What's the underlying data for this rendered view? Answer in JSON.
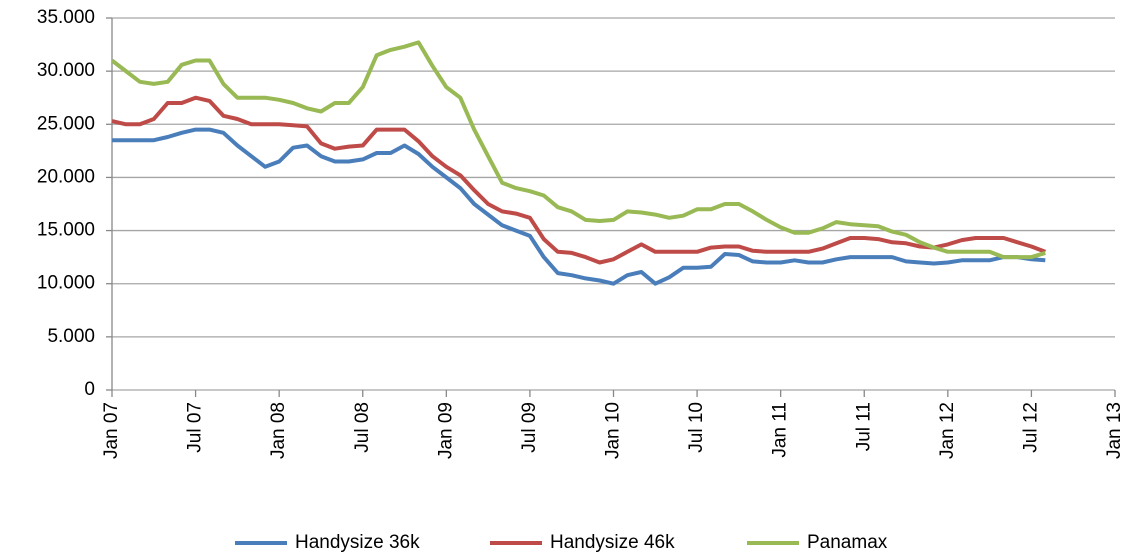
{
  "chart_data": {
    "type": "line",
    "categories": [
      "Jan 07",
      null,
      null,
      null,
      null,
      null,
      "Jul 07",
      null,
      null,
      null,
      null,
      null,
      "Jan 08",
      null,
      null,
      null,
      null,
      null,
      "Jul 08",
      null,
      null,
      null,
      null,
      null,
      "Jan 09",
      null,
      null,
      null,
      null,
      null,
      "Jul 09",
      null,
      null,
      null,
      null,
      null,
      "Jan 10",
      null,
      null,
      null,
      null,
      null,
      "Jul 10",
      null,
      null,
      null,
      null,
      null,
      "Jan 11",
      null,
      null,
      null,
      null,
      null,
      "Jul 11",
      null,
      null,
      null,
      null,
      null,
      "Jan 12",
      null,
      null,
      null,
      null,
      null,
      "Jul 12",
      null,
      null,
      null,
      null,
      null,
      "Jan 13"
    ],
    "series": [
      {
        "name": "Handysize 36k",
        "color": "#4a7ebb",
        "values": [
          23500,
          23500,
          23500,
          23500,
          23800,
          24200,
          24500,
          24500,
          24200,
          23000,
          22000,
          21000,
          21500,
          22800,
          23000,
          22000,
          21500,
          21500,
          21700,
          22300,
          22300,
          23000,
          22200,
          21000,
          20000,
          19000,
          17500,
          16500,
          15500,
          15000,
          14500,
          12500,
          11000,
          10800,
          10500,
          10300,
          10000,
          10800,
          11100,
          10000,
          10600,
          11500,
          11500,
          11600,
          12800,
          12700,
          12100,
          12000,
          12000,
          12200,
          12000,
          12000,
          12300,
          12500,
          12500,
          12500,
          12500,
          12100,
          12000,
          11900,
          12000,
          12200,
          12200,
          12200,
          12500,
          12500,
          12300,
          12200,
          null,
          null,
          null,
          null,
          null
        ]
      },
      {
        "name": "Handysize 46k",
        "color": "#be4b48",
        "values": [
          25300,
          25000,
          25000,
          25500,
          27000,
          27000,
          27500,
          27200,
          25800,
          25500,
          25000,
          25000,
          25000,
          24900,
          24800,
          23200,
          22700,
          22900,
          23000,
          24500,
          24500,
          24500,
          23400,
          22000,
          21000,
          20200,
          18800,
          17500,
          16800,
          16600,
          16200,
          14200,
          13000,
          12900,
          12500,
          12000,
          12300,
          13000,
          13700,
          13000,
          13000,
          13000,
          13000,
          13400,
          13500,
          13500,
          13100,
          13000,
          13000,
          13000,
          13000,
          13300,
          13800,
          14300,
          14300,
          14200,
          13900,
          13800,
          13500,
          13400,
          13700,
          14100,
          14300,
          14300,
          14300,
          13900,
          13500,
          13000,
          null,
          null,
          null,
          null,
          null
        ]
      },
      {
        "name": "Panamax",
        "color": "#98b954",
        "values": [
          31000,
          30000,
          29000,
          28800,
          29000,
          30600,
          31000,
          31000,
          28800,
          27500,
          27500,
          27500,
          27300,
          27000,
          26500,
          26200,
          27000,
          27000,
          28500,
          31500,
          32000,
          32300,
          32700,
          30500,
          28500,
          27500,
          24500,
          22000,
          19500,
          19000,
          18700,
          18300,
          17200,
          16800,
          16000,
          15900,
          16000,
          16800,
          16700,
          16500,
          16200,
          16400,
          17000,
          17000,
          17500,
          17500,
          16800,
          16000,
          15300,
          14800,
          14800,
          15200,
          15800,
          15600,
          15500,
          15400,
          14900,
          14600,
          13900,
          13400,
          13000,
          13000,
          13000,
          13000,
          12500,
          12500,
          12500,
          12900,
          null,
          null,
          null,
          null,
          null
        ]
      }
    ],
    "ylim": [
      0,
      35000
    ],
    "yticks": [
      0,
      {
        "value": 5000,
        "label": "5.000"
      },
      {
        "value": 10000,
        "label": "10.000"
      },
      {
        "value": 15000,
        "label": "15.000"
      },
      {
        "value": 20000,
        "label": "20.000"
      },
      {
        "value": 25000,
        "label": "25.000"
      },
      {
        "value": 30000,
        "label": "30.000"
      },
      {
        "value": 35000,
        "label": "35.000"
      }
    ],
    "grid": true,
    "legend": "bottom"
  }
}
